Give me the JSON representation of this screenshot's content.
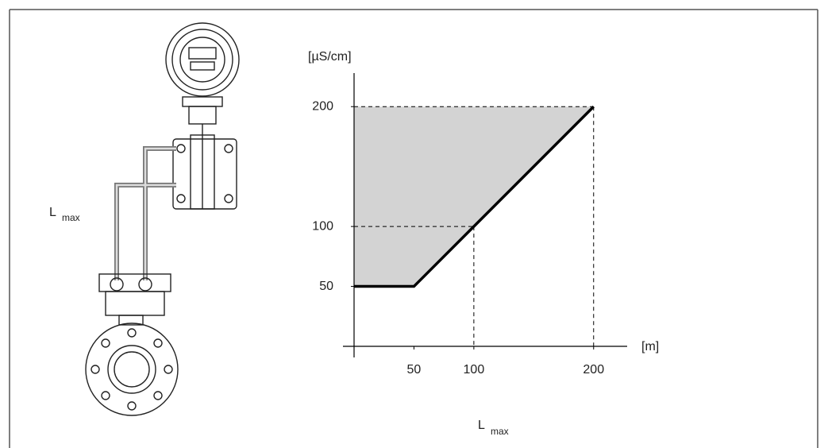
{
  "device_label": {
    "main": "L",
    "sub": "max"
  },
  "chart_data": {
    "type": "line",
    "y_label": "[µS/cm]",
    "x_unit": "[m]",
    "x_label": {
      "main": "L",
      "sub": "max"
    },
    "x": [
      0,
      50,
      100,
      200
    ],
    "series": [
      {
        "color": "#000000",
        "values": [
          50,
          50,
          100,
          200
        ]
      }
    ],
    "area_top": 200,
    "area_color": "#d3d3d3",
    "xlim": [
      0,
      228
    ],
    "ylim": [
      0,
      228
    ],
    "xticks": [
      50,
      100,
      200
    ],
    "yticks": [
      50,
      100,
      200
    ]
  }
}
